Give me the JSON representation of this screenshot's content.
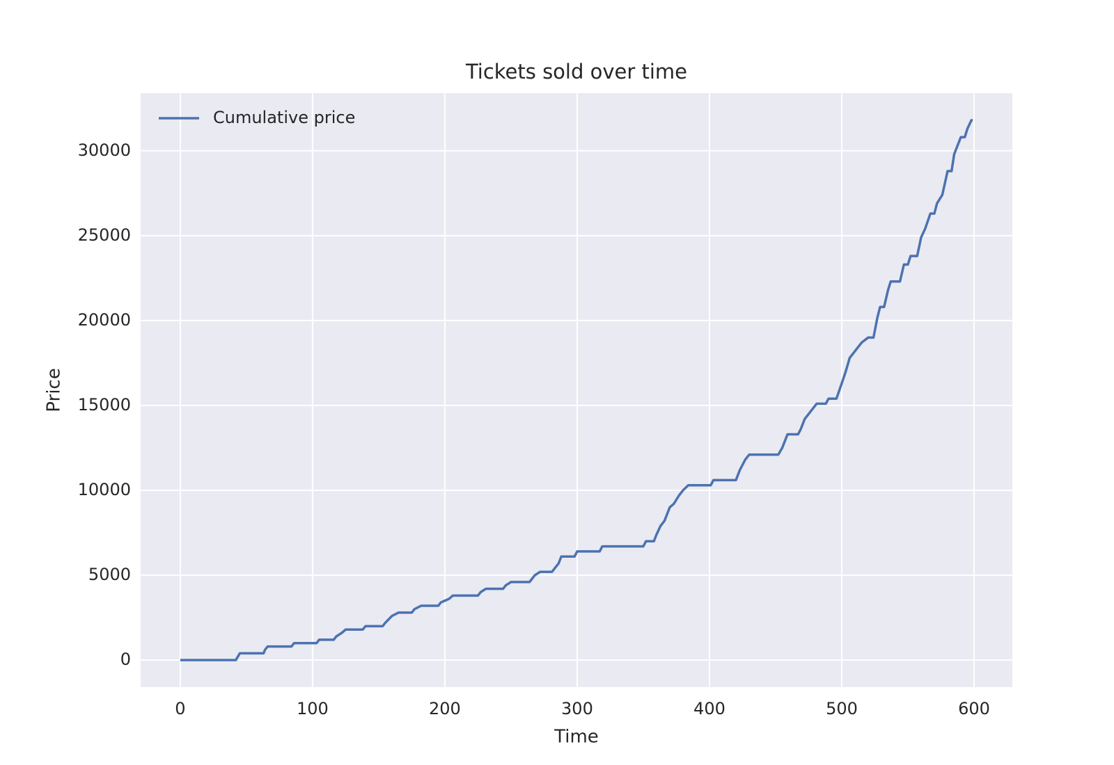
{
  "chart_data": {
    "type": "line",
    "title": "Tickets sold over time",
    "xlabel": "Time",
    "ylabel": "Price",
    "x": [
      0,
      42,
      45,
      63,
      64,
      66,
      84,
      86,
      103,
      105,
      116,
      118,
      122,
      125,
      138,
      140,
      153,
      155,
      160,
      165,
      175,
      177,
      182,
      195,
      197,
      203,
      206,
      225,
      227,
      231,
      244,
      246,
      250,
      264,
      266,
      268,
      272,
      281,
      283,
      286,
      288,
      298,
      300,
      317,
      319,
      350,
      352,
      358,
      360,
      363,
      366,
      370,
      373,
      377,
      380,
      384,
      401,
      403,
      420,
      423,
      427,
      430,
      452,
      455,
      459,
      467,
      469,
      472,
      475,
      481,
      488,
      490,
      496,
      500,
      503,
      506,
      509,
      512,
      515,
      520,
      524,
      527,
      529,
      532,
      535,
      537,
      544,
      547,
      550,
      552,
      557,
      560,
      563,
      567,
      570,
      572,
      576,
      580,
      583,
      585,
      588,
      590,
      593,
      595,
      598,
      599
    ],
    "series": [
      {
        "name": "Cumulative price",
        "color": "#4c72b0",
        "values": [
          0,
          0,
          400,
          400,
          600,
          800,
          800,
          1000,
          1000,
          1200,
          1200,
          1400,
          1600,
          1800,
          1800,
          2000,
          2000,
          2200,
          2600,
          2800,
          2800,
          3000,
          3200,
          3200,
          3400,
          3600,
          3800,
          3800,
          4000,
          4200,
          4200,
          4400,
          4600,
          4600,
          4800,
          5000,
          5200,
          5200,
          5400,
          5700,
          6100,
          6100,
          6400,
          6400,
          6700,
          6700,
          7000,
          7000,
          7400,
          7900,
          8200,
          9000,
          9200,
          9700,
          10000,
          10300,
          10300,
          10600,
          10600,
          11200,
          11800,
          12100,
          12100,
          12500,
          13300,
          13300,
          13600,
          14200,
          14500,
          15100,
          15100,
          15400,
          15400,
          16300,
          17000,
          17800,
          18100,
          18400,
          18700,
          19000,
          19000,
          20200,
          20800,
          20800,
          21800,
          22300,
          22300,
          23300,
          23300,
          23800,
          23800,
          24900,
          25400,
          26300,
          26300,
          26900,
          27400,
          28800,
          28800,
          29800,
          30400,
          30800,
          30800,
          31300,
          31800,
          31800
        ]
      }
    ],
    "xlim": [
      -29.95,
      628.95
    ],
    "ylim": [
      -1590,
      33390
    ],
    "xticks": [
      0,
      100,
      200,
      300,
      400,
      500,
      600
    ],
    "yticks": [
      0,
      5000,
      10000,
      15000,
      20000,
      25000,
      30000
    ],
    "grid": true,
    "legend": "upper left",
    "background": "#eaeaf2"
  }
}
